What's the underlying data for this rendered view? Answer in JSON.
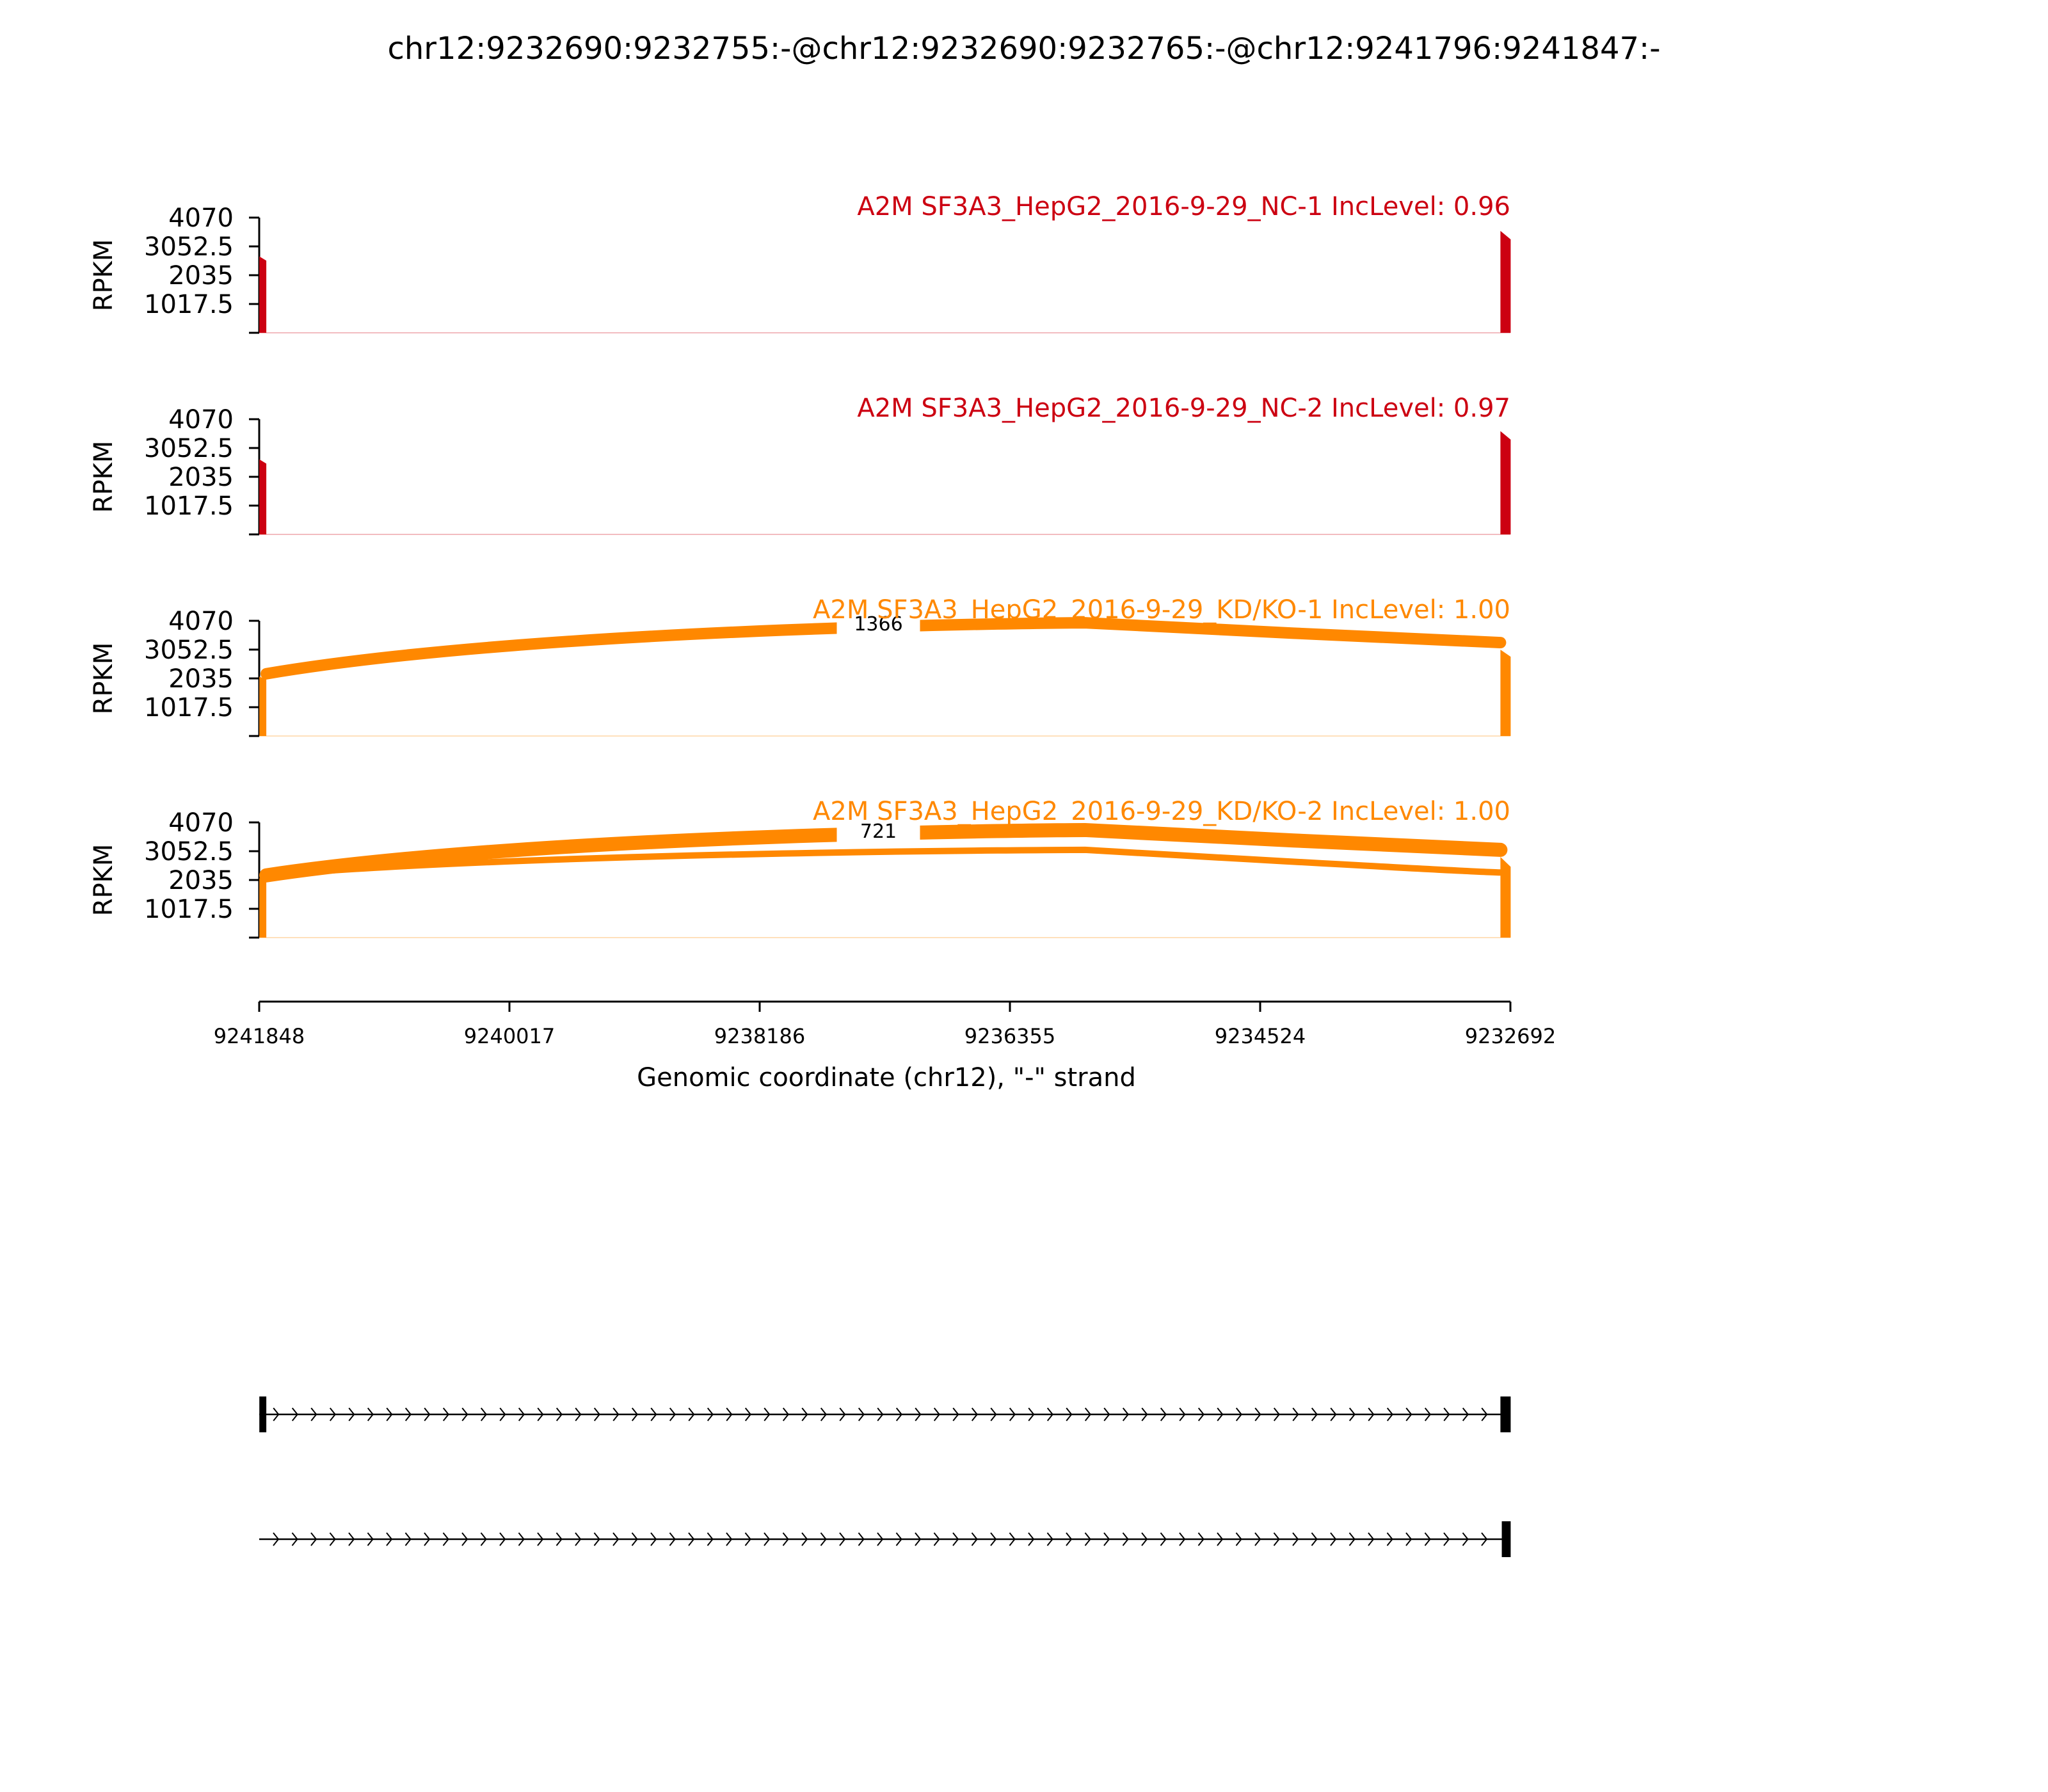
{
  "title": "chr12:9232690:9232755:-@chr12:9232690:9232765:-@chr12:9241796:9241847:-",
  "colors": {
    "nc": "#cc0011",
    "kd": "#ff8800",
    "axis": "#000000"
  },
  "chart_data": {
    "type": "area",
    "title": "chr12:9232690:9232755:-@chr12:9232690:9232765:-@chr12:9241796:9241847:-",
    "xlabel": "Genomic coordinate (chr12), \"-\" strand",
    "xticks": [
      "9241848",
      "9240017",
      "9238186",
      "9236355",
      "9234524",
      "9232692"
    ],
    "xlim": [
      9241848,
      9232692
    ],
    "ylabel": "RPKM",
    "yticks": [
      "1017.5",
      "2035",
      "3052.5",
      "4070"
    ],
    "ylim": [
      0,
      4070
    ],
    "panels": [
      {
        "label": "A2M SF3A3_HepG2_2016-9-29_NC-1 IncLevel: 0.96",
        "group": "nc",
        "coverage": [
          {
            "x0": 9241847,
            "x1": 9241796,
            "y0": 2700,
            "y1": 2550
          },
          {
            "x0": 9232765,
            "x1": 9232690,
            "y0": 3600,
            "y1": 3300
          }
        ],
        "junctions": []
      },
      {
        "label": "A2M SF3A3_HepG2_2016-9-29_NC-2 IncLevel: 0.97",
        "group": "nc",
        "coverage": [
          {
            "x0": 9241847,
            "x1": 9241796,
            "y0": 2650,
            "y1": 2500
          },
          {
            "x0": 9232765,
            "x1": 9232690,
            "y0": 3650,
            "y1": 3350
          }
        ],
        "junctions": []
      },
      {
        "label": "A2M SF3A3_HepG2_2016-9-29_KD/KO-1 IncLevel: 1.00",
        "group": "kd",
        "coverage": [
          {
            "x0": 9241847,
            "x1": 9241796,
            "y0": 2100,
            "y1": 2000
          },
          {
            "x0": 9232765,
            "x1": 9232690,
            "y0": 3050,
            "y1": 2800
          }
        ],
        "junctions": [
          {
            "from": 9241796,
            "to": 9232765,
            "count": "1366",
            "y_start": 2200,
            "y_peak": 4000,
            "y_end": 3300,
            "width": 18
          }
        ]
      },
      {
        "label": "A2M SF3A3_HepG2_2016-9-29_KD/KO-2 IncLevel: 1.00",
        "group": "kd",
        "coverage": [
          {
            "x0": 9241847,
            "x1": 9241796,
            "y0": 2100,
            "y1": 2000
          },
          {
            "x0": 9232765,
            "x1": 9232690,
            "y0": 2850,
            "y1": 2500
          }
        ],
        "junctions": [
          {
            "from": 9241796,
            "to": 9232765,
            "count": "721",
            "y_start": 2200,
            "y_peak": 3800,
            "y_end": 3100,
            "width": 22
          },
          {
            "from": 9241796,
            "to": 9232755,
            "count": "",
            "y_start": 2200,
            "y_peak": 3100,
            "y_end": 2300,
            "width": 10
          }
        ]
      }
    ],
    "transcripts": [
      {
        "exons": [
          [
            9241847,
            9241796
          ],
          [
            9232765,
            9232690
          ]
        ],
        "intron_start": 9241847
      },
      {
        "exons": [
          [
            9232755,
            9232690
          ]
        ],
        "intron_start": 9241848
      }
    ]
  }
}
